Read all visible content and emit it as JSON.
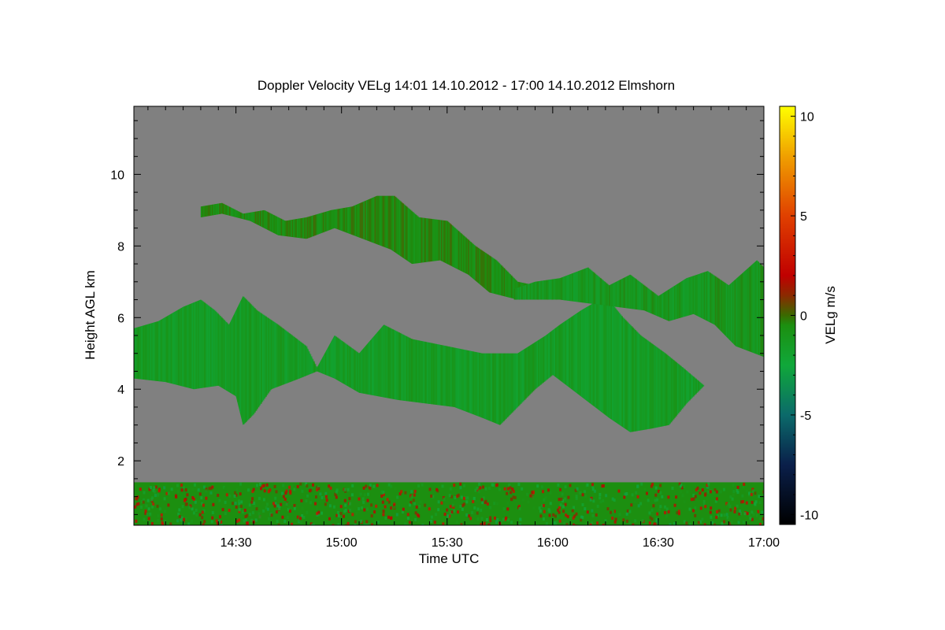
{
  "chart_data": {
    "type": "heatmap",
    "title": "Doppler Velocity VELg   14:01 14.10.2012 - 17:00 14.10.2012 Elmshorn",
    "xlabel": "Time UTC",
    "ylabel": "Height AGL km",
    "colorbar_label": "VELg m/s",
    "x_range_minutes_utc": [
      841,
      1020
    ],
    "xlim": [
      "14:01",
      "17:00"
    ],
    "ylim": [
      0.2,
      11.9
    ],
    "x_ticks": [
      {
        "minute": 870,
        "label": "14:30"
      },
      {
        "minute": 900,
        "label": "15:00"
      },
      {
        "minute": 930,
        "label": "15:30"
      },
      {
        "minute": 960,
        "label": "16:00"
      },
      {
        "minute": 990,
        "label": "16:30"
      },
      {
        "minute": 1020,
        "label": "17:00"
      }
    ],
    "y_ticks": [
      {
        "value": 2,
        "label": "2"
      },
      {
        "value": 4,
        "label": "4"
      },
      {
        "value": 6,
        "label": "6"
      },
      {
        "value": 8,
        "label": "8"
      },
      {
        "value": 10,
        "label": "10"
      }
    ],
    "colorbar": {
      "range": [
        -10.5,
        10.5
      ],
      "ticks": [
        {
          "value": 10,
          "label": "10"
        },
        {
          "value": 5,
          "label": "5"
        },
        {
          "value": 0,
          "label": "0"
        },
        {
          "value": -5,
          "label": "-5"
        },
        {
          "value": -10,
          "label": "-10"
        }
      ],
      "stops": [
        {
          "value": -10.5,
          "color": "#000000"
        },
        {
          "value": -7.5,
          "color": "#0a1f4a"
        },
        {
          "value": -5,
          "color": "#0b6a6a"
        },
        {
          "value": -2.5,
          "color": "#10a83a"
        },
        {
          "value": -0.5,
          "color": "#1c8f10"
        },
        {
          "value": 0,
          "color": "#3a6a00"
        },
        {
          "value": 1,
          "color": "#8a2a00"
        },
        {
          "value": 2,
          "color": "#c00000"
        },
        {
          "value": 5,
          "color": "#e04000"
        },
        {
          "value": 8,
          "color": "#f0a000"
        },
        {
          "value": 10.5,
          "color": "#ffff00"
        }
      ]
    },
    "background_color": "#808080",
    "echo_layers": [
      {
        "name": "lower-cloud-layer",
        "velocity_ms": -1.5,
        "top": [
          [
            841,
            5.7
          ],
          [
            848,
            5.9
          ],
          [
            855,
            6.3
          ],
          [
            860,
            6.5
          ],
          [
            864,
            6.2
          ],
          [
            868,
            5.8
          ],
          [
            872,
            6.6
          ],
          [
            876,
            6.2
          ],
          [
            882,
            5.8
          ],
          [
            890,
            5.2
          ],
          [
            893,
            4.6
          ],
          [
            898,
            5.5
          ],
          [
            905,
            5.0
          ],
          [
            912,
            5.8
          ],
          [
            920,
            5.4
          ],
          [
            930,
            5.2
          ],
          [
            940,
            5.0
          ],
          [
            950,
            5.0
          ],
          [
            958,
            5.5
          ],
          [
            962,
            5.8
          ],
          [
            968,
            6.2
          ],
          [
            975,
            6.6
          ],
          [
            980,
            6.0
          ],
          [
            985,
            5.5
          ],
          [
            992,
            5.0
          ],
          [
            997,
            4.6
          ],
          [
            1003,
            4.1
          ]
        ],
        "bottom": [
          [
            1003,
            4.1
          ],
          [
            998,
            3.6
          ],
          [
            993,
            3.0
          ],
          [
            988,
            2.9
          ],
          [
            982,
            2.8
          ],
          [
            976,
            3.2
          ],
          [
            968,
            3.8
          ],
          [
            960,
            4.4
          ],
          [
            955,
            4.0
          ],
          [
            950,
            3.5
          ],
          [
            945,
            3.0
          ],
          [
            940,
            3.2
          ],
          [
            932,
            3.5
          ],
          [
            924,
            3.6
          ],
          [
            916,
            3.7
          ],
          [
            905,
            3.9
          ],
          [
            898,
            4.3
          ],
          [
            893,
            4.5
          ],
          [
            888,
            4.3
          ],
          [
            880,
            4.0
          ],
          [
            875,
            3.3
          ],
          [
            872,
            3.0
          ],
          [
            870,
            3.8
          ],
          [
            865,
            4.1
          ],
          [
            858,
            4.0
          ],
          [
            850,
            4.2
          ],
          [
            841,
            4.3
          ]
        ]
      },
      {
        "name": "upper-cloud-layer-1",
        "velocity_ms": -0.6,
        "top": [
          [
            860,
            9.1
          ],
          [
            866,
            9.2
          ],
          [
            872,
            8.9
          ],
          [
            878,
            9.0
          ],
          [
            884,
            8.7
          ],
          [
            890,
            8.8
          ],
          [
            897,
            9.0
          ],
          [
            903,
            9.1
          ],
          [
            910,
            9.4
          ],
          [
            915,
            9.4
          ],
          [
            922,
            8.8
          ],
          [
            930,
            8.7
          ],
          [
            938,
            8.0
          ],
          [
            944,
            7.6
          ],
          [
            950,
            7.0
          ],
          [
            955,
            6.9
          ]
        ],
        "bottom": [
          [
            955,
            6.9
          ],
          [
            950,
            6.5
          ],
          [
            942,
            6.7
          ],
          [
            936,
            7.2
          ],
          [
            928,
            7.6
          ],
          [
            920,
            7.5
          ],
          [
            914,
            7.9
          ],
          [
            906,
            8.2
          ],
          [
            898,
            8.5
          ],
          [
            890,
            8.2
          ],
          [
            882,
            8.3
          ],
          [
            874,
            8.7
          ],
          [
            866,
            8.9
          ],
          [
            860,
            8.8
          ]
        ]
      },
      {
        "name": "upper-cloud-layer-2",
        "velocity_ms": -1.2,
        "top": [
          [
            949,
            6.8
          ],
          [
            955,
            7.0
          ],
          [
            962,
            7.1
          ],
          [
            970,
            7.4
          ],
          [
            976,
            6.9
          ],
          [
            982,
            7.2
          ],
          [
            990,
            6.6
          ],
          [
            998,
            7.1
          ],
          [
            1004,
            7.3
          ],
          [
            1010,
            6.9
          ],
          [
            1018,
            7.6
          ],
          [
            1020,
            7.4
          ]
        ],
        "bottom": [
          [
            1020,
            4.9
          ],
          [
            1012,
            5.2
          ],
          [
            1006,
            5.8
          ],
          [
            1000,
            6.1
          ],
          [
            993,
            5.9
          ],
          [
            986,
            6.2
          ],
          [
            978,
            6.3
          ],
          [
            970,
            6.4
          ],
          [
            962,
            6.5
          ],
          [
            955,
            6.5
          ],
          [
            949,
            6.5
          ]
        ]
      }
    ],
    "boundary_layer": {
      "top_km": 1.4,
      "bottom_km": 0.2,
      "velocity_ms": -0.5
    }
  }
}
